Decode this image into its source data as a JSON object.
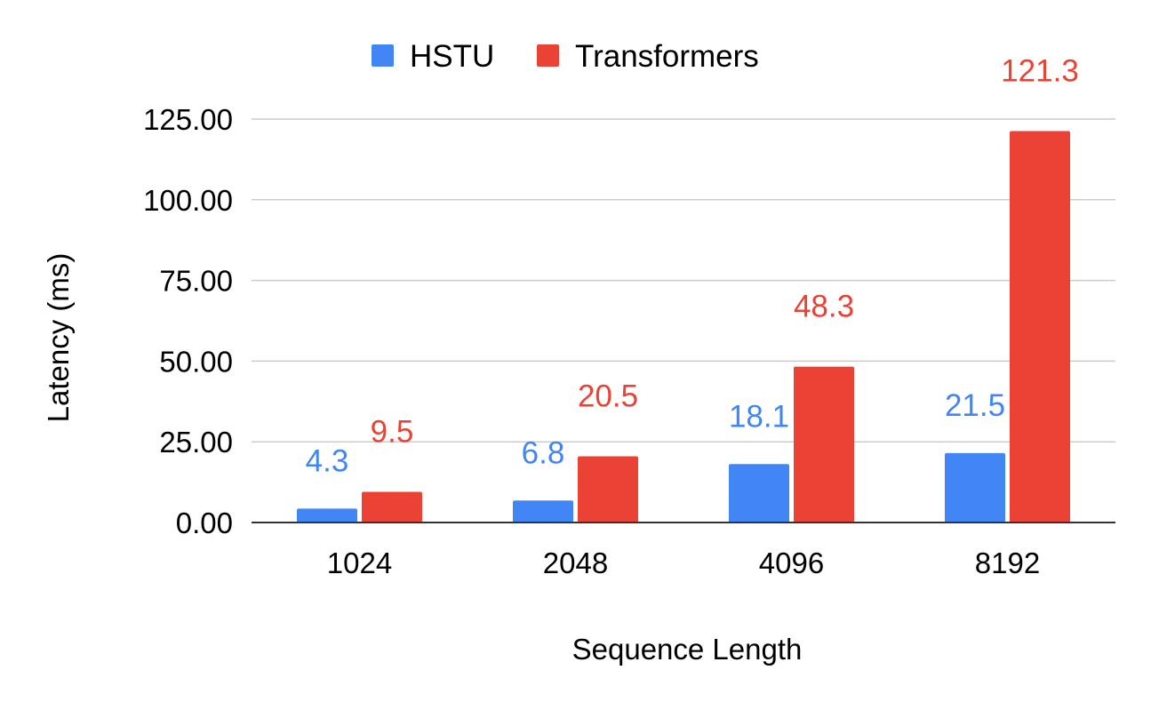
{
  "chart_data": {
    "type": "bar",
    "title": "",
    "xlabel": "Sequence Length",
    "ylabel": "Latency (ms)",
    "categories": [
      "1024",
      "2048",
      "4096",
      "8192"
    ],
    "series": [
      {
        "name": "HSTU",
        "color": "#4285f4",
        "values": [
          4.3,
          6.8,
          18.1,
          21.5
        ],
        "data_labels": [
          "4.3",
          "6.8",
          "18.1",
          "21.5"
        ]
      },
      {
        "name": "Transformers",
        "color": "#ea4335",
        "values": [
          9.5,
          20.5,
          48.3,
          121.3
        ],
        "data_labels": [
          "9.5",
          "20.5",
          "48.3",
          "121.3"
        ]
      }
    ],
    "ylim": [
      0,
      125
    ],
    "yticks": [
      0,
      25,
      50,
      75,
      100,
      125
    ],
    "ytick_labels": [
      "0.00",
      "25.00",
      "50.00",
      "75.00",
      "100.00",
      "125.00"
    ],
    "grid": true,
    "legend_position": "top-center"
  }
}
